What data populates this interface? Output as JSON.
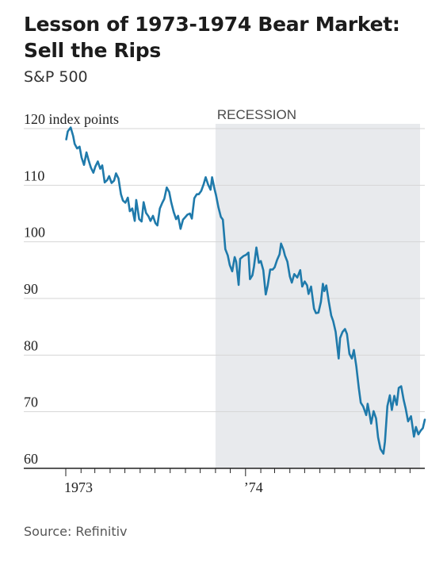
{
  "header": {
    "title_line1": "Lesson of 1973-1974 Bear Market:",
    "title_line2": "Sell the Rips",
    "subtitle": "S&P 500"
  },
  "footer": {
    "source": "Source: Refinitiv"
  },
  "colors": {
    "line": "#1f7aab",
    "recession_shade": "#e8eaed",
    "gridline": "#d6d6d6",
    "axis": "#222222"
  },
  "chart_data": {
    "type": "line",
    "title": "Lesson of 1973-1974 Bear Market: Sell the Rips",
    "subtitle": "S&P 500",
    "ylabel": "120 index points",
    "ylim": [
      60,
      120
    ],
    "xlim": [
      "1973-01-01",
      "1974-12-31"
    ],
    "yticks": [
      60,
      70,
      80,
      90,
      100,
      110,
      120
    ],
    "ytick_labels": [
      "60",
      "70",
      "80",
      "90",
      "100",
      "110",
      "120 index points"
    ],
    "xtick_labels": [
      {
        "date": "1973-01-01",
        "label": "1973"
      },
      {
        "date": "1974-01-01",
        "label": "’74"
      }
    ],
    "grid": true,
    "shaded_regions": [
      {
        "label": "RECESSION",
        "start": "1973-11-01",
        "end": "1974-12-31"
      }
    ],
    "series": [
      {
        "values": [
          [
            "1973-01-02",
            118.1
          ],
          [
            "1973-01-05",
            119.5
          ],
          [
            "1973-01-11",
            120.2
          ],
          [
            "1973-01-16",
            118.7
          ],
          [
            "1973-01-19",
            117.3
          ],
          [
            "1973-01-24",
            116.5
          ],
          [
            "1973-01-29",
            116.8
          ],
          [
            "1973-02-02",
            114.9
          ],
          [
            "1973-02-07",
            113.6
          ],
          [
            "1973-02-12",
            115.8
          ],
          [
            "1973-02-16",
            114.5
          ],
          [
            "1973-02-21",
            113.1
          ],
          [
            "1973-02-26",
            112.2
          ],
          [
            "1973-03-02",
            113.3
          ],
          [
            "1973-03-07",
            114.2
          ],
          [
            "1973-03-12",
            112.9
          ],
          [
            "1973-03-16",
            113.5
          ],
          [
            "1973-03-21",
            110.5
          ],
          [
            "1973-03-26",
            110.9
          ],
          [
            "1973-03-30",
            111.6
          ],
          [
            "1973-04-04",
            110.4
          ],
          [
            "1973-04-09",
            110.8
          ],
          [
            "1973-04-13",
            112.1
          ],
          [
            "1973-04-18",
            111.2
          ],
          [
            "1973-04-23",
            108.4
          ],
          [
            "1973-04-27",
            107.3
          ],
          [
            "1973-05-02",
            106.9
          ],
          [
            "1973-05-07",
            107.8
          ],
          [
            "1973-05-11",
            105.4
          ],
          [
            "1973-05-16",
            105.9
          ],
          [
            "1973-05-21",
            103.7
          ],
          [
            "1973-05-24",
            107.4
          ],
          [
            "1973-05-30",
            104.0
          ],
          [
            "1973-06-04",
            103.6
          ],
          [
            "1973-06-08",
            107.0
          ],
          [
            "1973-06-13",
            105.1
          ],
          [
            "1973-06-18",
            104.5
          ],
          [
            "1973-06-22",
            103.7
          ],
          [
            "1973-06-27",
            104.6
          ],
          [
            "1973-07-02",
            103.3
          ],
          [
            "1973-07-06",
            102.9
          ],
          [
            "1973-07-11",
            105.9
          ],
          [
            "1973-07-16",
            106.9
          ],
          [
            "1973-07-20",
            107.6
          ],
          [
            "1973-07-25",
            109.6
          ],
          [
            "1973-07-30",
            108.8
          ],
          [
            "1973-08-03",
            107.0
          ],
          [
            "1973-08-08",
            105.3
          ],
          [
            "1973-08-13",
            104.0
          ],
          [
            "1973-08-17",
            104.6
          ],
          [
            "1973-08-22",
            102.3
          ],
          [
            "1973-08-27",
            103.9
          ],
          [
            "1973-08-31",
            104.3
          ],
          [
            "1973-09-05",
            104.8
          ],
          [
            "1973-09-10",
            105.0
          ],
          [
            "1973-09-14",
            104.1
          ],
          [
            "1973-09-19",
            107.7
          ],
          [
            "1973-09-24",
            108.4
          ],
          [
            "1973-09-28",
            108.4
          ],
          [
            "1973-10-03",
            109.0
          ],
          [
            "1973-10-08",
            110.2
          ],
          [
            "1973-10-12",
            111.4
          ],
          [
            "1973-10-17",
            110.1
          ],
          [
            "1973-10-22",
            109.2
          ],
          [
            "1973-10-25",
            111.4
          ],
          [
            "1973-10-30",
            109.3
          ],
          [
            "1973-11-02",
            108.3
          ],
          [
            "1973-11-07",
            106.1
          ],
          [
            "1973-11-12",
            104.4
          ],
          [
            "1973-11-16",
            103.9
          ],
          [
            "1973-11-21",
            98.7
          ],
          [
            "1973-11-26",
            97.6
          ],
          [
            "1973-11-30",
            95.9
          ],
          [
            "1973-12-05",
            94.8
          ],
          [
            "1973-12-10",
            97.3
          ],
          [
            "1973-12-13",
            96.5
          ],
          [
            "1973-12-18",
            92.4
          ],
          [
            "1973-12-21",
            97.0
          ],
          [
            "1973-12-28",
            97.5
          ],
          [
            "1974-01-02",
            97.7
          ],
          [
            "1974-01-07",
            98.1
          ],
          [
            "1974-01-10",
            93.4
          ],
          [
            "1974-01-15",
            94.1
          ],
          [
            "1974-01-18",
            95.6
          ],
          [
            "1974-01-23",
            99.0
          ],
          [
            "1974-01-28",
            96.3
          ],
          [
            "1974-02-01",
            96.6
          ],
          [
            "1974-02-06",
            95.0
          ],
          [
            "1974-02-11",
            90.7
          ],
          [
            "1974-02-15",
            92.3
          ],
          [
            "1974-02-20",
            95.1
          ],
          [
            "1974-02-25",
            95.1
          ],
          [
            "1974-03-01",
            95.5
          ],
          [
            "1974-03-06",
            96.8
          ],
          [
            "1974-03-11",
            97.8
          ],
          [
            "1974-03-14",
            99.7
          ],
          [
            "1974-03-19",
            98.6
          ],
          [
            "1974-03-22",
            97.6
          ],
          [
            "1974-03-27",
            96.5
          ],
          [
            "1974-04-01",
            93.9
          ],
          [
            "1974-04-05",
            92.8
          ],
          [
            "1974-04-10",
            94.3
          ],
          [
            "1974-04-16",
            93.7
          ],
          [
            "1974-04-22",
            95.0
          ],
          [
            "1974-04-26",
            92.1
          ],
          [
            "1974-05-01",
            93.0
          ],
          [
            "1974-05-06",
            92.3
          ],
          [
            "1974-05-09",
            90.8
          ],
          [
            "1974-05-14",
            92.1
          ],
          [
            "1974-05-20",
            88.2
          ],
          [
            "1974-05-24",
            87.4
          ],
          [
            "1974-05-29",
            87.5
          ],
          [
            "1974-06-03",
            89.4
          ],
          [
            "1974-06-07",
            92.6
          ],
          [
            "1974-06-10",
            91.3
          ],
          [
            "1974-06-14",
            92.3
          ],
          [
            "1974-06-19",
            89.5
          ],
          [
            "1974-06-24",
            87.0
          ],
          [
            "1974-06-28",
            86.0
          ],
          [
            "1974-07-03",
            84.1
          ],
          [
            "1974-07-09",
            79.4
          ],
          [
            "1974-07-12",
            83.0
          ],
          [
            "1974-07-17",
            84.1
          ],
          [
            "1974-07-22",
            84.6
          ],
          [
            "1974-07-26",
            83.7
          ],
          [
            "1974-07-31",
            80.2
          ],
          [
            "1974-08-05",
            79.4
          ],
          [
            "1974-08-09",
            80.9
          ],
          [
            "1974-08-14",
            78.0
          ],
          [
            "1974-08-19",
            74.2
          ],
          [
            "1974-08-23",
            71.6
          ],
          [
            "1974-08-28",
            70.9
          ],
          [
            "1974-09-03",
            69.4
          ],
          [
            "1974-09-06",
            71.4
          ],
          [
            "1974-09-10",
            69.5
          ],
          [
            "1974-09-13",
            67.9
          ],
          [
            "1974-09-18",
            70.1
          ],
          [
            "1974-09-23",
            68.8
          ],
          [
            "1974-09-27",
            65.5
          ],
          [
            "1974-10-02",
            63.4
          ],
          [
            "1974-10-08",
            62.6
          ],
          [
            "1974-10-11",
            64.7
          ],
          [
            "1974-10-16",
            71.0
          ],
          [
            "1974-10-21",
            72.9
          ],
          [
            "1974-10-25",
            70.3
          ],
          [
            "1974-10-30",
            72.8
          ],
          [
            "1974-11-04",
            71.2
          ],
          [
            "1974-11-08",
            74.2
          ],
          [
            "1974-11-13",
            74.5
          ],
          [
            "1974-11-18",
            72.1
          ],
          [
            "1974-11-22",
            70.6
          ],
          [
            "1974-11-27",
            68.3
          ],
          [
            "1974-12-03",
            69.2
          ],
          [
            "1974-12-09",
            65.6
          ],
          [
            "1974-12-13",
            67.3
          ],
          [
            "1974-12-18",
            66.0
          ],
          [
            "1974-12-23",
            66.7
          ],
          [
            "1974-12-27",
            67.1
          ],
          [
            "1974-12-31",
            68.6
          ]
        ]
      }
    ]
  }
}
